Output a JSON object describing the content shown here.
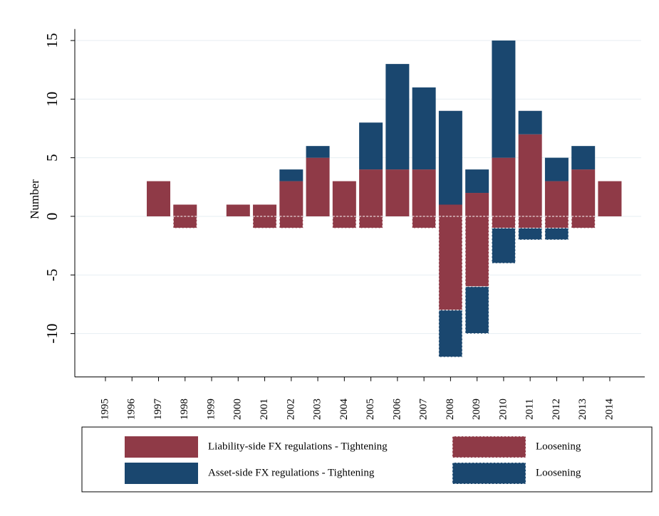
{
  "chart_data": {
    "type": "bar",
    "stacked": true,
    "y_label": "Number",
    "categories": [
      "1995",
      "1996",
      "1997",
      "1998",
      "1999",
      "2000",
      "2001",
      "2002",
      "2003",
      "2004",
      "2005",
      "2006",
      "2007",
      "2008",
      "2009",
      "2010",
      "2011",
      "2012",
      "2013",
      "2014"
    ],
    "series": [
      {
        "name": "Liability-side FX regulations - Tightening",
        "color": "#8f3a47",
        "dashed": false,
        "values": [
          0,
          0,
          3,
          1,
          0,
          1,
          1,
          3,
          5,
          3,
          4,
          4,
          4,
          1,
          2,
          5,
          7,
          3,
          4,
          3
        ]
      },
      {
        "name": "Asset-side FX regulations - Tightening",
        "color": "#1a476f",
        "dashed": false,
        "values": [
          0,
          0,
          0,
          0,
          0,
          0,
          0,
          1,
          1,
          0,
          4,
          9,
          7,
          8,
          2,
          10,
          2,
          2,
          2,
          0
        ]
      },
      {
        "name": "Loosening",
        "color": "#8f3a47",
        "dashed": true,
        "values": [
          0,
          0,
          0,
          -1,
          0,
          0,
          -1,
          -1,
          0,
          -1,
          -1,
          0,
          -1,
          -8,
          -6,
          -1,
          -1,
          -1,
          -1,
          0
        ]
      },
      {
        "name": "Loosening",
        "color": "#1a476f",
        "dashed": true,
        "values": [
          0,
          0,
          0,
          0,
          0,
          0,
          0,
          0,
          0,
          0,
          0,
          0,
          0,
          -4,
          -4,
          -3,
          -1,
          -1,
          0,
          0
        ]
      }
    ],
    "ylim": [
      -13.7,
      15.5
    ],
    "yticks": [
      -10,
      -5,
      0,
      5,
      10,
      15
    ],
    "grid": true
  }
}
